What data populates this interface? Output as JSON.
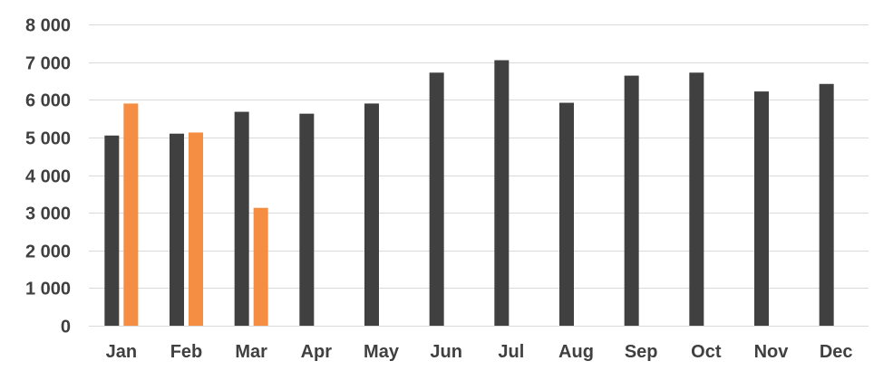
{
  "chart_data": {
    "type": "bar",
    "title": "",
    "xlabel": "",
    "ylabel": "",
    "categories": [
      "Jan",
      "Feb",
      "Mar",
      "Apr",
      "May",
      "Jun",
      "Jul",
      "Aug",
      "Sep",
      "Oct",
      "Nov",
      "Dec"
    ],
    "series": [
      {
        "color": "#404040",
        "values": [
          5050,
          5100,
          5680,
          5630,
          5900,
          6720,
          7050,
          5920,
          6640,
          6720,
          6220,
          6420
        ]
      },
      {
        "color": "#F58D42",
        "values": [
          5900,
          5130,
          3130,
          null,
          null,
          null,
          null,
          null,
          null,
          null,
          null,
          null
        ]
      }
    ],
    "ylim": [
      0,
      8000
    ],
    "yticks": [
      {
        "value": 0,
        "label": "0"
      },
      {
        "value": 1000,
        "label": "1 000"
      },
      {
        "value": 2000,
        "label": "2 000"
      },
      {
        "value": 3000,
        "label": "3 000"
      },
      {
        "value": 4000,
        "label": "4 000"
      },
      {
        "value": 5000,
        "label": "5 000"
      },
      {
        "value": 6000,
        "label": "6 000"
      },
      {
        "value": 7000,
        "label": "7 000"
      },
      {
        "value": 8000,
        "label": "8 000"
      }
    ],
    "grid": true,
    "gridColor": "#D9D9D9",
    "legend": "none"
  }
}
